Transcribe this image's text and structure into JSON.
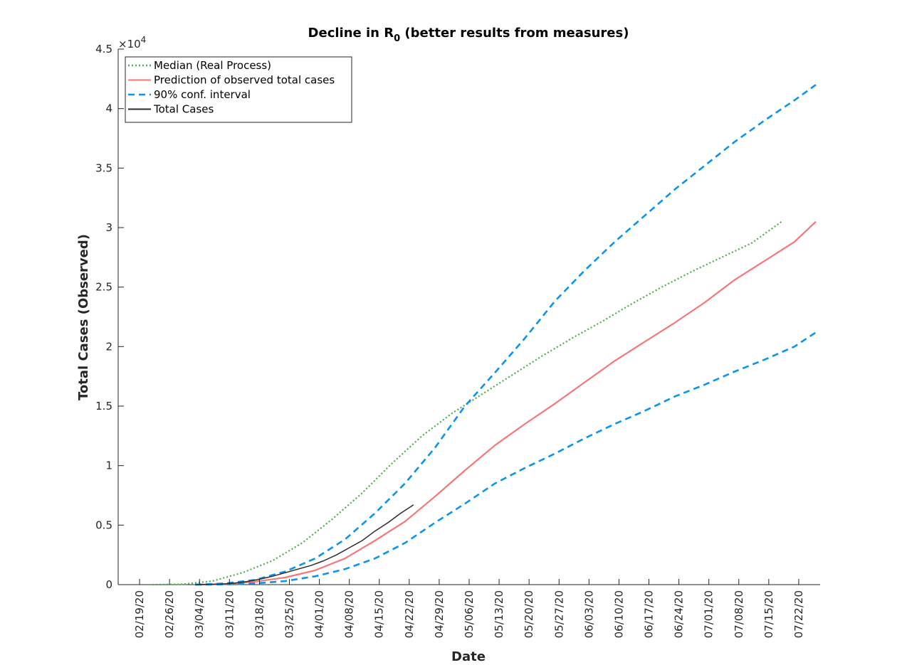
{
  "chart_data": {
    "type": "line",
    "title": {
      "prefix": "Decline in R",
      "subscript": "0",
      "suffix": " (better results from measures)"
    },
    "xlabel": "Date",
    "ylabel": "Total Cases (Observed)",
    "y_multiplier_label": {
      "base": "×10",
      "exponent": "4"
    },
    "x_start_date": "2020-02-19",
    "xlim_days": [
      -5,
      159
    ],
    "ylim": [
      0,
      4.5
    ],
    "x_tick_days": [
      0,
      7,
      14,
      21,
      28,
      35,
      42,
      49,
      56,
      63,
      70,
      77,
      84,
      91,
      98,
      105,
      112,
      119,
      126,
      133,
      140,
      147,
      154
    ],
    "x_tick_labels": [
      "02/19/20",
      "02/26/20",
      "03/04/20",
      "03/11/20",
      "03/18/20",
      "03/25/20",
      "04/01/20",
      "04/08/20",
      "04/15/20",
      "04/22/20",
      "04/29/20",
      "05/06/20",
      "05/13/20",
      "05/20/20",
      "05/27/20",
      "06/03/20",
      "06/10/20",
      "06/17/20",
      "06/24/20",
      "07/01/20",
      "07/08/20",
      "07/15/20",
      "07/22/20"
    ],
    "y_ticks": [
      0,
      0.5,
      1,
      1.5,
      2,
      2.5,
      3,
      3.5,
      4,
      4.5
    ],
    "y_tick_labels": [
      "0",
      "0.5",
      "1",
      "1.5",
      "2",
      "2.5",
      "3",
      "3.5",
      "4",
      "4.5"
    ],
    "grid": false,
    "legend_placement": "top-left",
    "series": [
      {
        "name": "Median (Real Process)",
        "color": "#4daf4a",
        "style": "dotted",
        "x": [
          3,
          10,
          17,
          24,
          31,
          38,
          45,
          52,
          59,
          66,
          73,
          80,
          87,
          94,
          101,
          108,
          115,
          122,
          129,
          136,
          143,
          150
        ],
        "y": [
          0.0,
          0.003,
          0.03,
          0.1,
          0.2,
          0.35,
          0.55,
          0.77,
          1.02,
          1.25,
          1.44,
          1.6,
          1.76,
          1.92,
          2.07,
          2.21,
          2.36,
          2.5,
          2.63,
          2.75,
          2.87,
          3.05
        ]
      },
      {
        "name": "Prediction of observed total cases",
        "color": "#f87678",
        "style": "solid",
        "x": [
          13,
          20,
          27,
          34,
          41,
          48,
          55,
          62,
          69,
          76,
          83,
          90,
          97,
          104,
          111,
          118,
          125,
          132,
          139,
          146,
          153,
          158
        ],
        "y": [
          0.0,
          0.005,
          0.025,
          0.06,
          0.12,
          0.22,
          0.37,
          0.53,
          0.74,
          0.96,
          1.17,
          1.35,
          1.52,
          1.7,
          1.88,
          2.04,
          2.2,
          2.37,
          2.56,
          2.72,
          2.88,
          3.05
        ]
      },
      {
        "name": "90% conf. interval",
        "color": "#0b94ed",
        "style": "dashed",
        "x": [
          13,
          20,
          27,
          34,
          41,
          48,
          55,
          62,
          69,
          76,
          83,
          90,
          97,
          104,
          111,
          118,
          125,
          132,
          139,
          146,
          153,
          158
        ],
        "y": [
          0.0,
          0.01,
          0.04,
          0.11,
          0.22,
          0.38,
          0.6,
          0.85,
          1.15,
          1.5,
          1.78,
          2.07,
          2.38,
          2.64,
          2.88,
          3.1,
          3.32,
          3.52,
          3.72,
          3.9,
          4.07,
          4.2
        ]
      },
      {
        "name": "",
        "color": "#0b94ed",
        "style": "dashed",
        "x": [
          13,
          20,
          27,
          34,
          41,
          48,
          55,
          62,
          69,
          76,
          83,
          90,
          97,
          104,
          111,
          118,
          125,
          132,
          139,
          146,
          153,
          158
        ],
        "y": [
          0.0,
          0.002,
          0.01,
          0.03,
          0.07,
          0.13,
          0.22,
          0.35,
          0.52,
          0.68,
          0.85,
          0.98,
          1.1,
          1.23,
          1.35,
          1.46,
          1.58,
          1.68,
          1.79,
          1.89,
          2.0,
          2.12
        ]
      },
      {
        "name": "Total Cases",
        "color": "#2b2b2b",
        "style": "solid",
        "x": [
          13,
          16,
          19,
          22,
          25,
          28,
          31,
          34,
          37,
          40,
          43,
          46,
          49,
          52,
          55,
          58,
          61,
          64
        ],
        "y": [
          0.0,
          0.002,
          0.005,
          0.012,
          0.025,
          0.045,
          0.07,
          0.1,
          0.13,
          0.16,
          0.2,
          0.25,
          0.31,
          0.37,
          0.45,
          0.52,
          0.6,
          0.67
        ]
      }
    ]
  }
}
